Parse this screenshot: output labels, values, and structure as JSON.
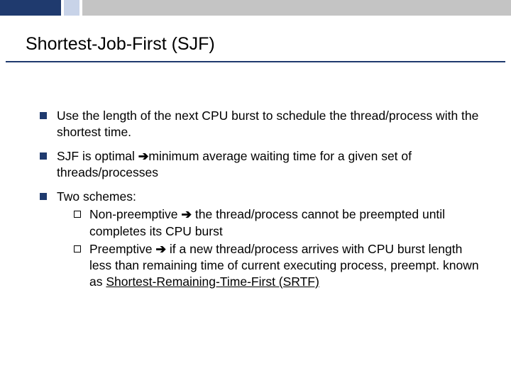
{
  "colors": {
    "navy": "#1f3a6e",
    "light": "#c8d3e8",
    "gray": "#c4c4c4",
    "underline": "#1f3a6e",
    "bullet_fill": "#1f3a6e",
    "text": "#000000",
    "background": "#ffffff"
  },
  "typography": {
    "title_fontsize": 25,
    "body_fontsize": 17.5,
    "font_family": "Arial"
  },
  "title": "Shortest-Job-First (SJF)",
  "bullets": [
    {
      "text": "Use the length of the next CPU burst to schedule the thread/process with the shortest time."
    },
    {
      "pre": "SJF is optimal ",
      "arrow": "➔",
      "post": "minimum average waiting time for a given set of threads/processes"
    },
    {
      "text": "Two schemes:",
      "sub": [
        {
          "label": "Non-preemptive",
          "arrow": " ➔ ",
          "rest": "the thread/process cannot be preempted until completes its CPU burst"
        },
        {
          "label": "Preemptive",
          "arrow": " ➔ ",
          "rest_a": "if a new thread/process arrives with CPU burst length less than remaining time of current executing process, preempt.  known as ",
          "rest_u": "Shortest-Remaining-Time-First (SRTF)"
        }
      ]
    }
  ]
}
